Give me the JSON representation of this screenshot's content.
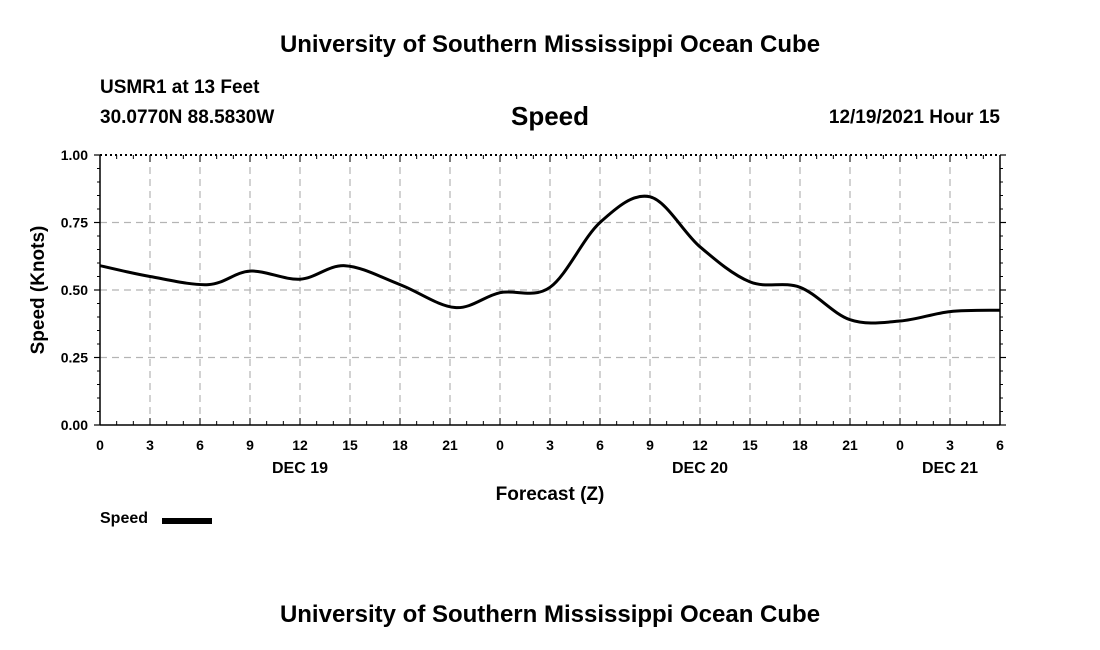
{
  "header": {
    "title_top": "University of Southern Mississippi Ocean Cube",
    "station": "USMR1 at 13 Feet",
    "coords": "30.0770N  88.5830W",
    "datetime": "12/19/2021 Hour 15",
    "title_bottom": "University of Southern Mississippi Ocean Cube"
  },
  "legend": {
    "label": "Speed"
  },
  "colors": {
    "line": "#000000",
    "grid": "#b4b4b4",
    "axis": "#000000"
  },
  "chart_data": {
    "type": "line",
    "title": "Speed",
    "xlabel": "Forecast (Z)",
    "ylabel": "Speed (Knots)",
    "xlim": [
      0,
      54
    ],
    "ylim": [
      0,
      1
    ],
    "grid": true,
    "legend_position": "bottom-left",
    "x_ticks": [
      0,
      3,
      6,
      9,
      12,
      15,
      18,
      21,
      24,
      27,
      30,
      33,
      36,
      39,
      42,
      45,
      48,
      51,
      54
    ],
    "x_tick_labels": [
      "0",
      "3",
      "6",
      "9",
      "12",
      "15",
      "18",
      "21",
      "0",
      "3",
      "6",
      "9",
      "12",
      "15",
      "18",
      "21",
      "0",
      "3",
      "6"
    ],
    "y_ticks": [
      0,
      0.25,
      0.5,
      0.75,
      1.0
    ],
    "y_tick_labels": [
      "0.00",
      "0.25",
      "0.50",
      "0.75",
      "1.00"
    ],
    "day_labels": [
      {
        "x": 12,
        "label": "DEC 19"
      },
      {
        "x": 36,
        "label": "DEC 20"
      },
      {
        "x": 51,
        "label": "DEC 21"
      }
    ],
    "series": [
      {
        "name": "Speed",
        "x": [
          0,
          3,
          6.5,
          9,
          12,
          14.7,
          18,
          21.3,
          24,
          27,
          30,
          33,
          36,
          39,
          42,
          45,
          48,
          51,
          54
        ],
        "values": [
          0.59,
          0.55,
          0.52,
          0.57,
          0.54,
          0.59,
          0.52,
          0.435,
          0.49,
          0.51,
          0.75,
          0.845,
          0.66,
          0.53,
          0.51,
          0.39,
          0.385,
          0.42,
          0.425
        ]
      }
    ]
  }
}
